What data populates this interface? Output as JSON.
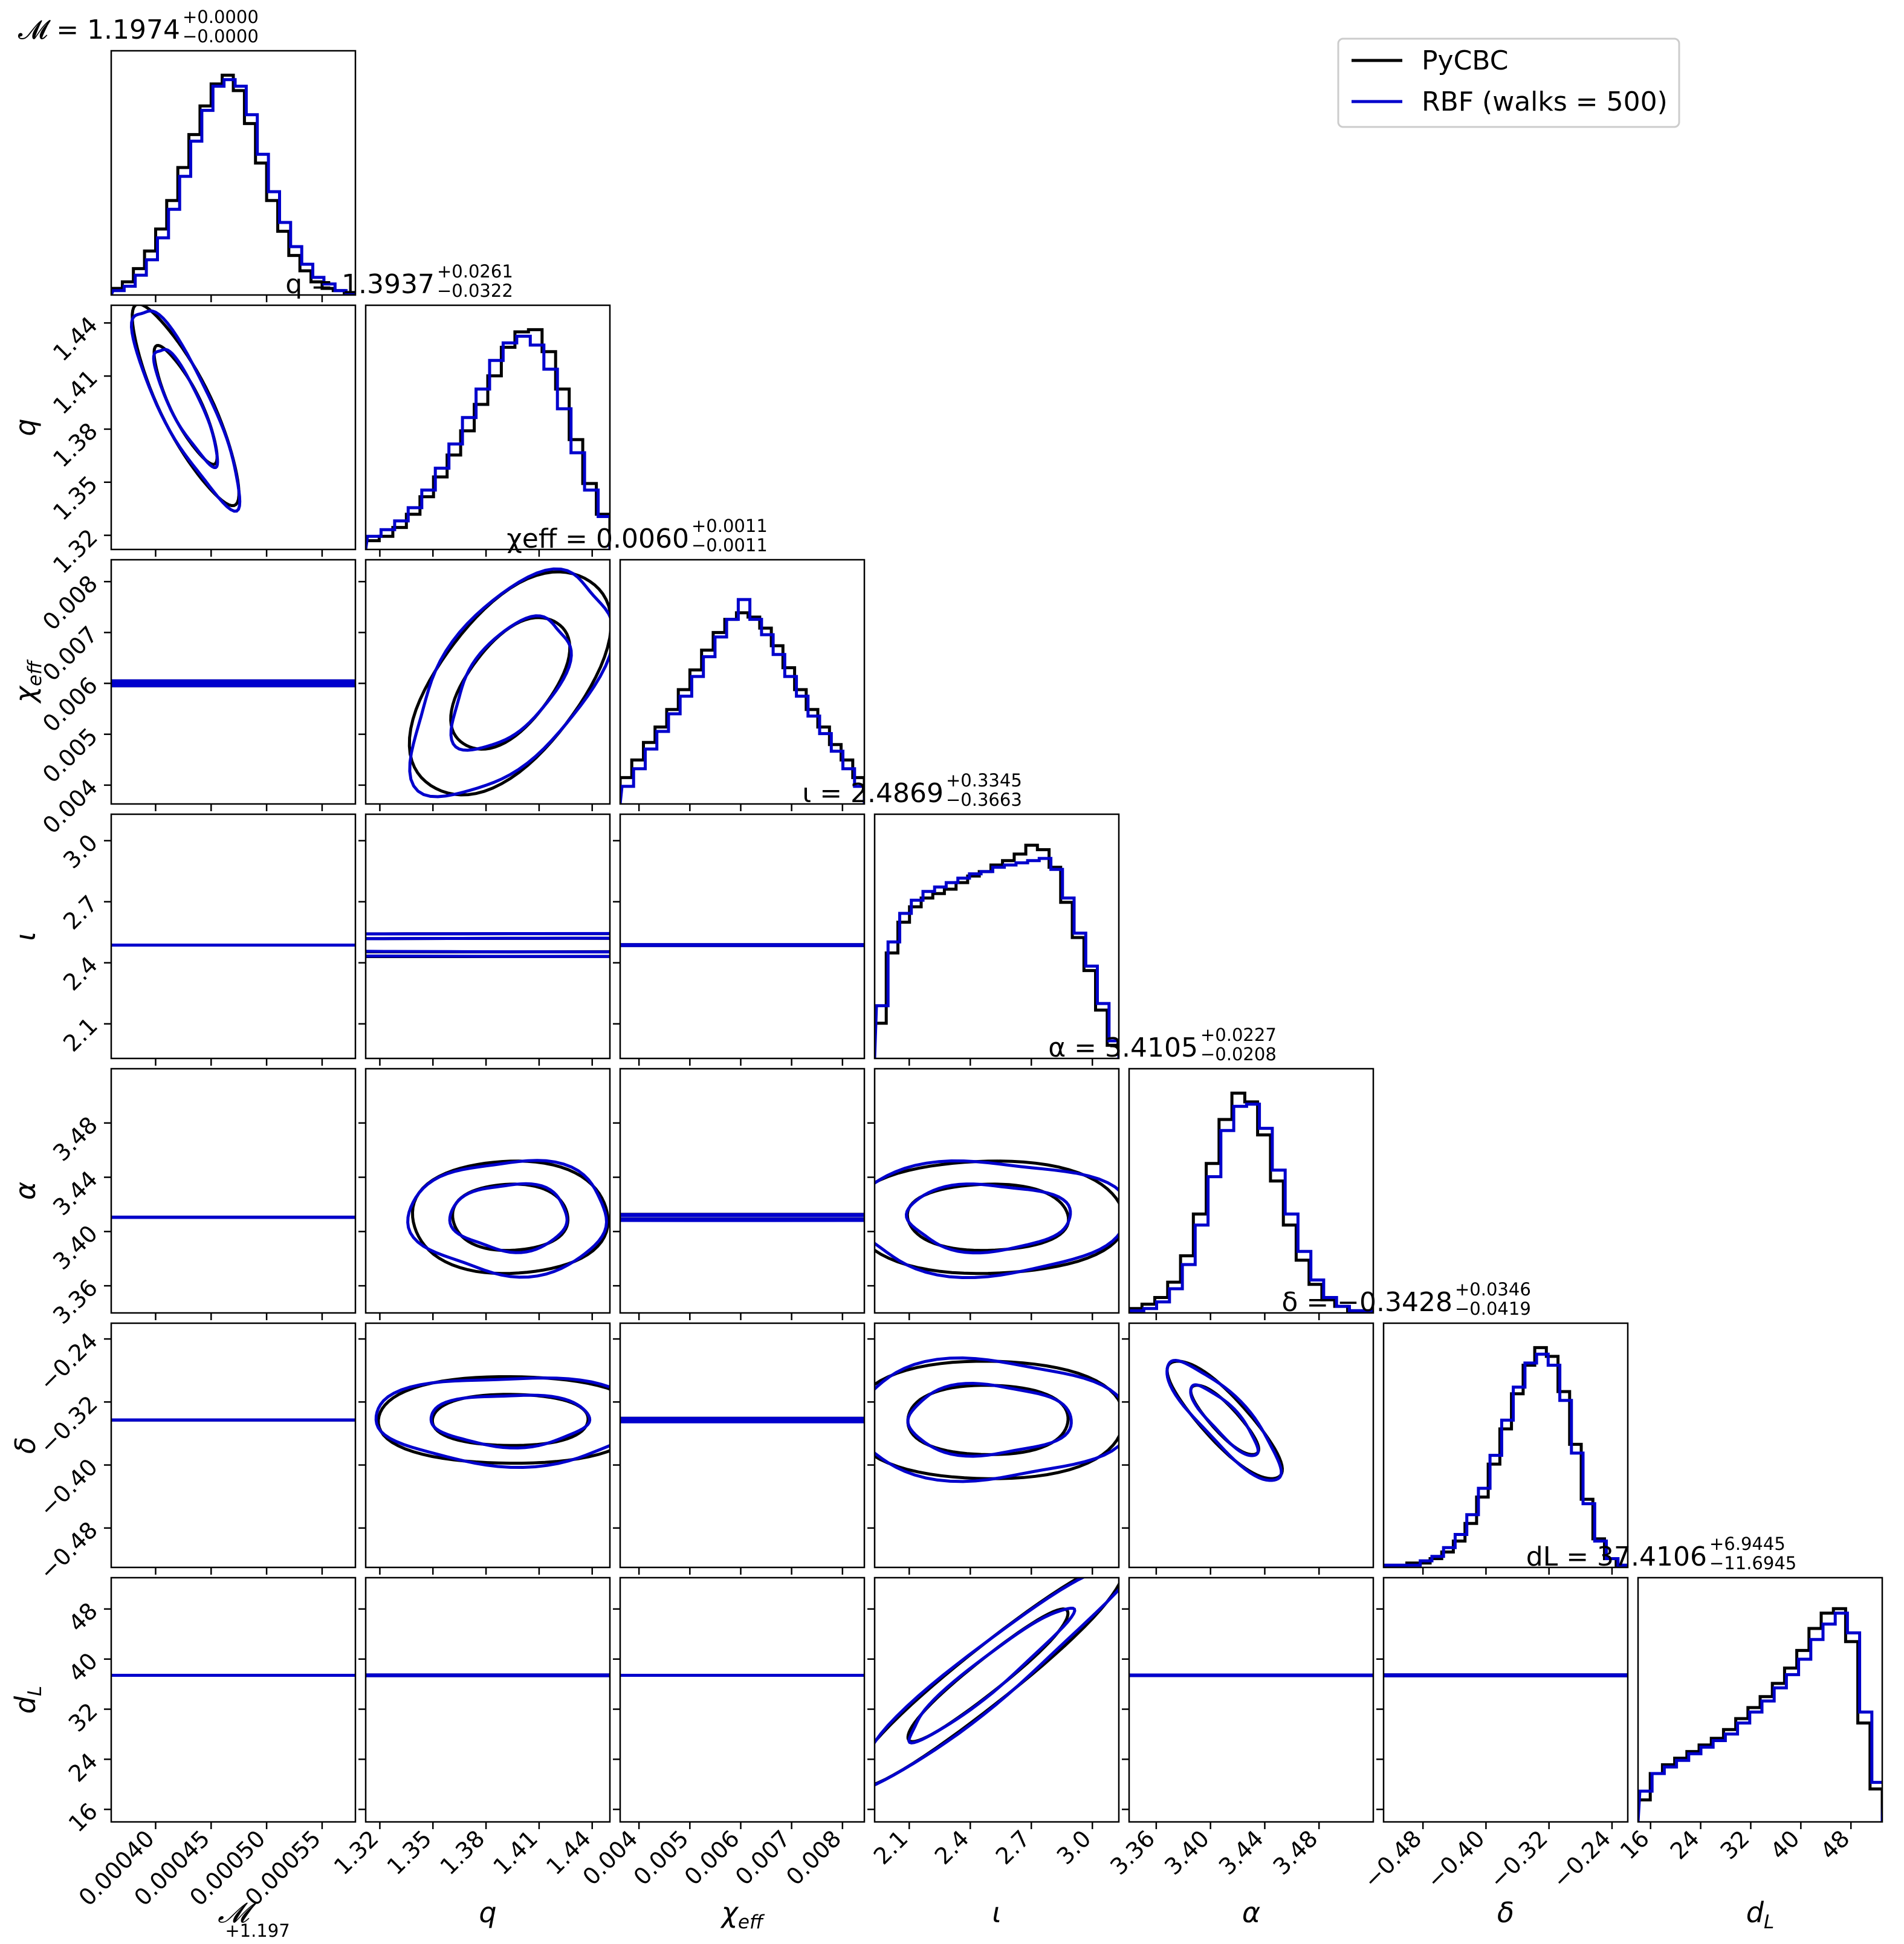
{
  "chart_data": {
    "type": "corner",
    "grid": false,
    "legend_position": "top-right",
    "legend": [
      {
        "name": "PyCBC",
        "color": "#000000"
      },
      {
        "name": "RBF (walks = 500)",
        "color": "#0000cc"
      }
    ],
    "params": [
      {
        "key": "mc",
        "label": "𝓜",
        "title_main": "𝓜 = 1.1974",
        "up": "+0.0000",
        "dn": "−0.0000",
        "median": 0.000427,
        "lo": 0.00036,
        "hi": 0.00058,
        "ticks": [
          0.0004,
          0.00045,
          0.0005,
          0.00055
        ],
        "tick_labels": [
          "0.00040",
          "0.00045",
          "0.00050",
          "0.00055"
        ],
        "offset": "+1.197",
        "sd": 2.4e-05
      },
      {
        "key": "q",
        "label": "q",
        "title_main": "q = 1.3937",
        "up": "+0.0261",
        "dn": "−0.0322",
        "median": 1.3937,
        "lo": 1.312,
        "hi": 1.45,
        "ticks": [
          1.32,
          1.35,
          1.38,
          1.41,
          1.44
        ],
        "tick_labels": [
          "1.32",
          "1.35",
          "1.38",
          "1.41",
          "1.44"
        ],
        "sd": 0.028
      },
      {
        "key": "chi",
        "label": "χeff",
        "title_main": "χeff = 0.0060",
        "up": "+0.0011",
        "dn": "−0.0011",
        "median": 0.006,
        "lo": 0.00363,
        "hi": 0.00843,
        "ticks": [
          0.004,
          0.005,
          0.006,
          0.007,
          0.008
        ],
        "tick_labels": [
          "0.004",
          "0.005",
          "0.006",
          "0.007",
          "0.008"
        ],
        "sd": 0.0011
      },
      {
        "key": "iota",
        "label": "ι",
        "title_main": "ι = 2.4869",
        "up": "+0.3345",
        "dn": "−0.3663",
        "median": 2.4869,
        "lo": 1.93,
        "hi": 3.13,
        "ticks": [
          2.1,
          2.4,
          2.7,
          3.0
        ],
        "tick_labels": [
          "2.1",
          "2.4",
          "2.7",
          "3.0"
        ],
        "sd": 0.34
      },
      {
        "key": "alpha",
        "label": "α",
        "title_main": "α = 3.4105",
        "up": "+0.0227",
        "dn": "−0.0208",
        "median": 3.4105,
        "lo": 3.34,
        "hi": 3.52,
        "ticks": [
          3.36,
          3.4,
          3.44,
          3.48
        ],
        "tick_labels": [
          "3.36",
          "3.40",
          "3.44",
          "3.48"
        ],
        "sd": 0.021
      },
      {
        "key": "delta",
        "label": "δ",
        "title_main": "δ = −0.3428",
        "up": "+0.0346",
        "dn": "−0.0419",
        "median": -0.3428,
        "lo": -0.53,
        "hi": -0.22,
        "ticks": [
          -0.48,
          -0.4,
          -0.32,
          -0.24
        ],
        "tick_labels": [
          "−0.48",
          "−0.40",
          "−0.32",
          "−0.24"
        ],
        "sd": 0.038
      },
      {
        "key": "dl",
        "label": "dL",
        "title_main": "dL = 37.4106",
        "up": "+6.9445",
        "dn": "−11.6945",
        "median": 37.4106,
        "lo": 14.0,
        "hi": 53.0,
        "ticks": [
          16,
          24,
          32,
          40,
          48
        ],
        "tick_labels": [
          "16",
          "24",
          "32",
          "40",
          "48"
        ],
        "sd": 9.0
      }
    ],
    "correlations": [
      {
        "pair": [
          "mc",
          "q"
        ],
        "rho": -0.85
      },
      {
        "pair": [
          "q",
          "chi"
        ],
        "rho": 0.55
      },
      {
        "pair": [
          "iota",
          "dl"
        ],
        "rho": 0.95
      },
      {
        "pair": [
          "alpha",
          "delta"
        ],
        "rho": -0.85
      }
    ],
    "histograms": {
      "mc": {
        "pycbc": [
          0.03,
          0.06,
          0.12,
          0.2,
          0.3,
          0.43,
          0.58,
          0.73,
          0.86,
          0.96,
          1.0,
          0.93,
          0.78,
          0.6,
          0.43,
          0.29,
          0.18,
          0.11,
          0.06,
          0.03,
          0.02,
          0.01
        ],
        "rbf": [
          0.02,
          0.04,
          0.09,
          0.16,
          0.26,
          0.39,
          0.54,
          0.7,
          0.84,
          0.95,
          0.98,
          0.95,
          0.82,
          0.64,
          0.47,
          0.33,
          0.22,
          0.14,
          0.08,
          0.05,
          0.02,
          0.01
        ]
      },
      "q": {
        "pycbc": [
          0.04,
          0.06,
          0.1,
          0.16,
          0.24,
          0.33,
          0.43,
          0.54,
          0.66,
          0.79,
          0.92,
          0.99,
          1.0,
          0.9,
          0.73,
          0.5,
          0.3,
          0.16
        ],
        "rbf": [
          0.06,
          0.09,
          0.13,
          0.19,
          0.27,
          0.37,
          0.48,
          0.6,
          0.73,
          0.86,
          0.94,
          0.97,
          0.93,
          0.82,
          0.64,
          0.44,
          0.27,
          0.15
        ]
      },
      "chi": {
        "pycbc": [
          0.12,
          0.2,
          0.28,
          0.35,
          0.43,
          0.52,
          0.61,
          0.7,
          0.78,
          0.84,
          0.87,
          0.85,
          0.8,
          0.72,
          0.62,
          0.52,
          0.43,
          0.35,
          0.27,
          0.2,
          0.12
        ],
        "rbf": [
          0.08,
          0.16,
          0.25,
          0.33,
          0.41,
          0.49,
          0.58,
          0.67,
          0.76,
          0.84,
          0.93,
          0.84,
          0.77,
          0.68,
          0.58,
          0.49,
          0.4,
          0.32,
          0.24,
          0.16,
          0.08
        ]
      },
      "iota": {
        "pycbc": [
          0.16,
          0.48,
          0.62,
          0.69,
          0.73,
          0.75,
          0.77,
          0.8,
          0.83,
          0.85,
          0.88,
          0.9,
          0.93,
          0.97,
          0.95,
          0.87,
          0.71,
          0.55,
          0.4,
          0.22,
          0.06
        ],
        "rbf": [
          0.24,
          0.53,
          0.66,
          0.72,
          0.76,
          0.78,
          0.8,
          0.82,
          0.84,
          0.85,
          0.87,
          0.88,
          0.89,
          0.9,
          0.91,
          0.86,
          0.73,
          0.57,
          0.42,
          0.25,
          0.08
        ]
      },
      "alpha": {
        "pycbc": [
          0.02,
          0.04,
          0.07,
          0.14,
          0.26,
          0.45,
          0.68,
          0.88,
          1.0,
          0.96,
          0.81,
          0.6,
          0.4,
          0.24,
          0.13,
          0.06,
          0.03,
          0.01,
          0.01
        ],
        "rbf": [
          0.01,
          0.02,
          0.05,
          0.11,
          0.22,
          0.4,
          0.62,
          0.83,
          0.94,
          0.95,
          0.84,
          0.65,
          0.45,
          0.28,
          0.15,
          0.07,
          0.03,
          0.01,
          0.01
        ]
      },
      "delta": {
        "pycbc": [
          0.01,
          0.01,
          0.02,
          0.02,
          0.04,
          0.07,
          0.12,
          0.2,
          0.32,
          0.47,
          0.63,
          0.79,
          0.92,
          1.0,
          0.96,
          0.8,
          0.56,
          0.31,
          0.13,
          0.04,
          0.01
        ],
        "rbf": [
          0.01,
          0.01,
          0.01,
          0.03,
          0.05,
          0.09,
          0.15,
          0.24,
          0.36,
          0.51,
          0.67,
          0.82,
          0.93,
          0.97,
          0.92,
          0.76,
          0.52,
          0.29,
          0.12,
          0.04,
          0.01
        ]
      },
      "dl": {
        "pycbc": [
          0.1,
          0.22,
          0.26,
          0.29,
          0.32,
          0.35,
          0.38,
          0.42,
          0.47,
          0.52,
          0.57,
          0.63,
          0.7,
          0.78,
          0.88,
          0.95,
          0.97,
          0.82,
          0.45,
          0.15
        ],
        "rbf": [
          0.14,
          0.22,
          0.25,
          0.28,
          0.31,
          0.34,
          0.37,
          0.4,
          0.45,
          0.5,
          0.55,
          0.61,
          0.67,
          0.74,
          0.83,
          0.9,
          0.95,
          0.86,
          0.5,
          0.18
        ]
      }
    }
  }
}
